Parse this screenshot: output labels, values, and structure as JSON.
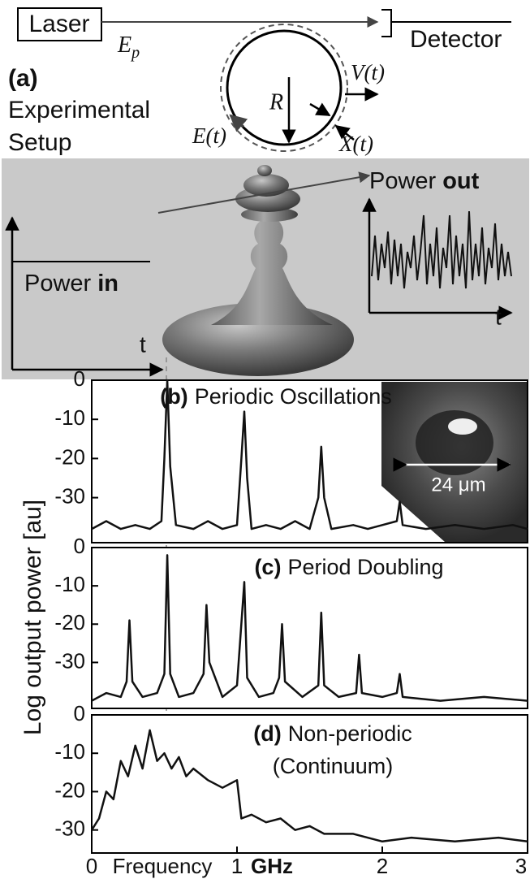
{
  "setup": {
    "laser": "Laser",
    "field": {
      "symbol": "E",
      "subscript": "p"
    },
    "detector": "Detector",
    "panel": "(a)",
    "caption": [
      "Experimental",
      "Setup"
    ],
    "radius": "R",
    "velocity": "V(t)",
    "displacement": "X(t)",
    "circulating": "E(t)",
    "power_out": {
      "text": "Power",
      "emphasis": "out"
    },
    "power_in": {
      "text": "Power",
      "emphasis": "in"
    },
    "time_in": "t",
    "time_out": "t"
  },
  "chart_data": [
    {
      "type": "line",
      "label": "(b)",
      "title": "Periodic Oscillations",
      "inset_label": "24 μm",
      "ylabel": "Log output power [au]",
      "color": "#111111",
      "x": [
        0,
        0.1,
        0.2,
        0.3,
        0.4,
        0.48,
        0.5,
        0.52,
        0.54,
        0.58,
        0.7,
        0.8,
        0.9,
        1.0,
        1.03,
        1.05,
        1.07,
        1.1,
        1.2,
        1.3,
        1.4,
        1.5,
        1.56,
        1.58,
        1.6,
        1.65,
        1.8,
        1.9,
        2.0,
        2.1,
        2.12,
        2.14,
        2.3,
        2.5,
        2.7,
        2.9,
        3.0
      ],
      "values": [
        -38,
        -36,
        -38,
        -37,
        -38,
        -36,
        -20,
        0,
        -22,
        -37,
        -38,
        -36,
        -38,
        -37,
        -20,
        -8,
        -25,
        -38,
        -37,
        -38,
        -36,
        -38,
        -30,
        -17,
        -30,
        -38,
        -37,
        -38,
        -37,
        -36,
        -31,
        -37,
        -38,
        -37,
        -38,
        -37,
        -38
      ],
      "xlim": [
        0,
        3
      ],
      "ylim": [
        -41.5,
        0
      ],
      "yticks": [
        0,
        -10,
        -20,
        -30
      ]
    },
    {
      "type": "line",
      "label": "(c)",
      "title": "Period Doubling",
      "color": "#111111",
      "x": [
        0,
        0.1,
        0.2,
        0.24,
        0.26,
        0.28,
        0.35,
        0.45,
        0.5,
        0.52,
        0.54,
        0.6,
        0.7,
        0.77,
        0.79,
        0.81,
        0.9,
        1.0,
        1.05,
        1.07,
        1.15,
        1.25,
        1.29,
        1.31,
        1.33,
        1.45,
        1.56,
        1.58,
        1.6,
        1.7,
        1.82,
        1.84,
        1.86,
        2.0,
        2.1,
        2.12,
        2.14,
        2.4,
        2.7,
        3.0
      ],
      "values": [
        -40,
        -38,
        -39,
        -35,
        -19,
        -35,
        -39,
        -38,
        -33,
        -2,
        -33,
        -39,
        -38,
        -33,
        -15,
        -30,
        -39,
        -36,
        -9,
        -34,
        -39,
        -38,
        -34,
        -20,
        -35,
        -39,
        -36,
        -17,
        -36,
        -39,
        -38,
        -28,
        -38,
        -39,
        -38,
        -33,
        -39,
        -40,
        -39,
        -40
      ],
      "xlim": [
        0,
        3
      ],
      "ylim": [
        -42,
        0
      ],
      "yticks": [
        0,
        -10,
        -20,
        -30
      ]
    },
    {
      "type": "line",
      "label": "(d)",
      "title": "Non-periodic",
      "subtitle": "(Continuum)",
      "xlabel": "Frequency",
      "xunit": "GHz",
      "color": "#111111",
      "x": [
        0,
        0.05,
        0.1,
        0.15,
        0.2,
        0.25,
        0.3,
        0.35,
        0.4,
        0.45,
        0.5,
        0.55,
        0.6,
        0.65,
        0.7,
        0.8,
        0.9,
        1.0,
        1.03,
        1.1,
        1.2,
        1.3,
        1.4,
        1.5,
        1.6,
        1.8,
        2.0,
        2.2,
        2.5,
        2.8,
        3.0
      ],
      "values": [
        -30,
        -27,
        -20,
        -22,
        -12,
        -16,
        -8,
        -14,
        -4,
        -12,
        -10,
        -14,
        -11,
        -16,
        -14,
        -17,
        -19,
        -17,
        -27,
        -26,
        -28,
        -27,
        -30,
        -29,
        -31,
        -31,
        -33,
        -32,
        -33,
        -32,
        -33
      ],
      "xlim": [
        0,
        3
      ],
      "ylim": [
        -36,
        0
      ],
      "yticks": [
        0,
        -10,
        -20,
        -30
      ],
      "xticks": [
        0,
        1,
        2,
        3
      ]
    }
  ]
}
